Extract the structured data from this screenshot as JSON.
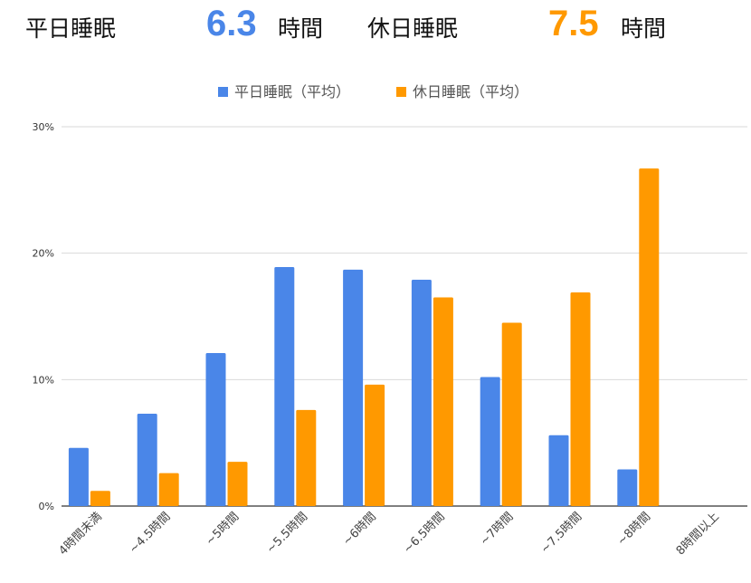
{
  "summary": {
    "weekday_label": "平日睡眠",
    "weekday_value": "6.3",
    "weekday_unit": "時間",
    "holiday_label": "休日睡眠",
    "holiday_value": "7.5",
    "holiday_unit": "時間"
  },
  "colors": {
    "weekday": "#4a86e8",
    "holiday": "#ff9900",
    "grid": "#d9d9d9",
    "axis": "#333333"
  },
  "chart_data": {
    "type": "bar",
    "title": "",
    "xlabel": "",
    "ylabel": "",
    "ylim": [
      0,
      30
    ],
    "yticks": [
      "0%",
      "10%",
      "20%",
      "30%"
    ],
    "legend_position": "top-center",
    "grid": true,
    "categories": [
      "4時間未満",
      "~4.5時間",
      "~5時間",
      "~5.5時間",
      "~6時間",
      "~6.5時間",
      "~7時間",
      "~7.5時間",
      "~8時間",
      "8時間以上"
    ],
    "series": [
      {
        "name": "平日睡眠（平均）",
        "values": [
          4.6,
          7.3,
          12.1,
          18.9,
          18.7,
          17.9,
          10.2,
          5.6,
          2.9,
          0
        ]
      },
      {
        "name": "休日睡眠（平均）",
        "values": [
          1.2,
          2.6,
          3.5,
          7.6,
          9.6,
          16.5,
          14.5,
          16.9,
          26.7,
          0
        ]
      }
    ]
  }
}
